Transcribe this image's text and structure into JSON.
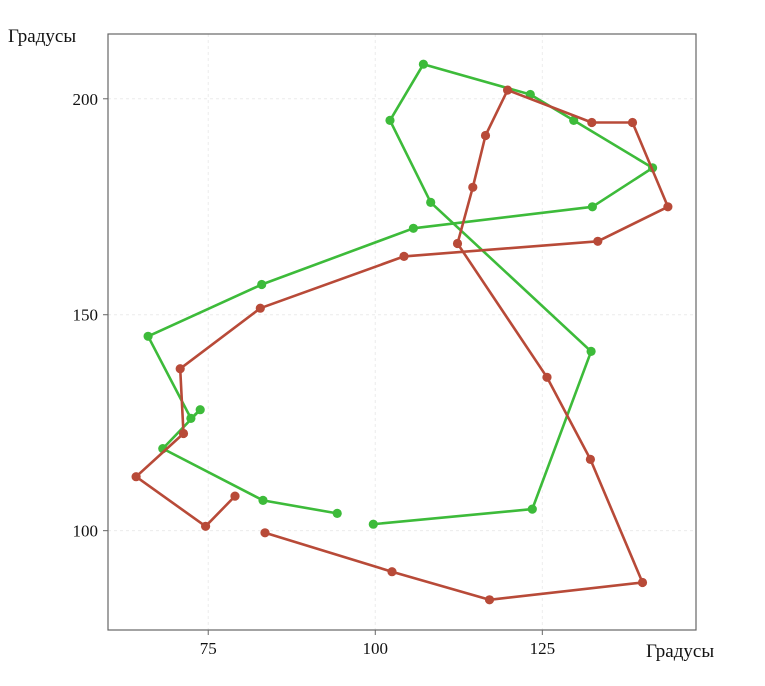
{
  "chart_data": {
    "type": "line",
    "xlabel": "Градусы",
    "ylabel": "Градусы",
    "xlim": [
      60,
      148
    ],
    "ylim": [
      77,
      215
    ],
    "xticks": [
      75,
      100,
      125
    ],
    "yticks": [
      100,
      150,
      200
    ],
    "grid": true,
    "series": [
      {
        "color": "#3dbb3a",
        "points": [
          [
            94.3,
            104
          ],
          [
            83.2,
            107
          ],
          [
            68.2,
            119
          ],
          [
            73.8,
            128
          ],
          [
            72.4,
            126
          ],
          [
            66,
            145
          ],
          [
            83,
            157
          ],
          [
            105.7,
            170
          ],
          [
            132.5,
            175
          ],
          [
            141.5,
            184
          ],
          [
            129.7,
            195
          ],
          [
            123.2,
            201
          ],
          [
            107.2,
            208
          ],
          [
            102.2,
            195
          ],
          [
            108.3,
            176
          ],
          [
            132.3,
            141.5
          ],
          [
            123.5,
            105
          ],
          [
            99.7,
            101.5
          ]
        ]
      },
      {
        "color": "#b84a38",
        "points": [
          [
            79,
            108
          ],
          [
            74.6,
            101
          ],
          [
            64.2,
            112.5
          ],
          [
            71.3,
            122.5
          ],
          [
            70.8,
            137.5
          ],
          [
            82.8,
            151.5
          ],
          [
            104.3,
            163.5
          ],
          [
            133.3,
            167
          ],
          [
            143.8,
            175
          ],
          [
            138.5,
            194.5
          ],
          [
            132.4,
            194.5
          ],
          [
            119.8,
            202
          ],
          [
            116.5,
            191.5
          ],
          [
            114.6,
            179.5
          ],
          [
            112.3,
            166.5
          ],
          [
            125.7,
            135.5
          ],
          [
            132.2,
            116.5
          ],
          [
            140,
            88
          ],
          [
            117.1,
            84
          ],
          [
            102.5,
            90.5
          ],
          [
            83.5,
            99.5
          ]
        ]
      }
    ]
  }
}
